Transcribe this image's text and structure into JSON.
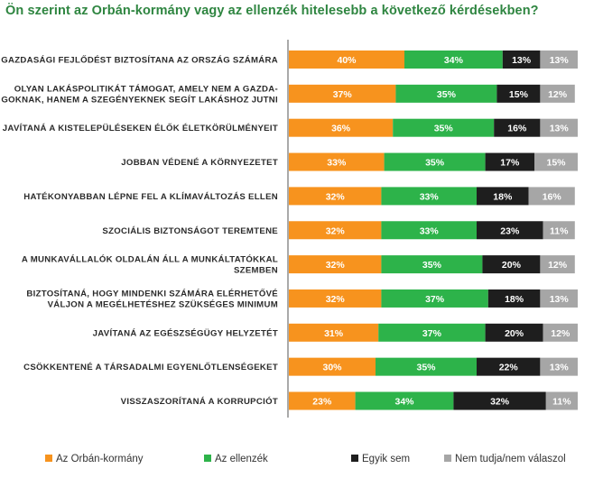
{
  "title": "Ön szerint az Orbán-kormány vagy az ellenzék hitelesebb a következő kérdésekben?",
  "chart_data": {
    "type": "bar",
    "orientation": "horizontal",
    "stacked": true,
    "value_format": "percent",
    "categories": [
      [
        "GAZDASÁGI FEJLŐDÉST BIZTOSÍTANA AZ ORSZÁG SZÁMÁRA"
      ],
      [
        "OLYAN LAKÁSPOLITIKÁT TÁMOGAT, AMELY NEM A GAZDA-",
        "GOKNAK, HANEM A SZEGÉNYEKNEK SEGÍT LAKÁSHOZ JUTNI"
      ],
      [
        "JAVÍTANÁ A KISTELEPÜLÉSEKEN ÉLŐK ÉLETKÖRÜLMÉNYEIT"
      ],
      [
        "JOBBAN VÉDENÉ A KÖRNYEZETET"
      ],
      [
        "HATÉKONYABBAN LÉPNE FEL A KLÍMAVÁLTOZÁS ELLEN"
      ],
      [
        "SZOCIÁLIS BIZTONSÁGOT TEREMTENE"
      ],
      [
        "A MUNKAVÁLLALÓK OLDALÁN ÁLL A MUNKÁLTATÓKKAL",
        "SZEMBEN"
      ],
      [
        "BIZTOSÍTANÁ, HOGY MINDENKI SZÁMÁRA ELÉRHETŐVÉ",
        "VÁLJON A MEGÉLHETÉSHEZ SZÜKSÉGES MINIMUM"
      ],
      [
        "JAVÍTANÁ AZ EGÉSZSÉGÜGY HELYZETÉT"
      ],
      [
        "CSÖKKENTENÉ A TÁRSADALMI EGYENLŐTLENSÉGEKET"
      ],
      [
        "VISSZASZORÍTANÁ A KORRUPCIÓT"
      ]
    ],
    "series": [
      {
        "name": "Az Orbán-kormány",
        "color": "#f7931e",
        "values": [
          40,
          37,
          36,
          33,
          32,
          32,
          32,
          32,
          31,
          30,
          23
        ]
      },
      {
        "name": "Az ellenzék",
        "color": "#2db34a",
        "values": [
          34,
          35,
          35,
          35,
          33,
          33,
          35,
          37,
          37,
          35,
          34
        ]
      },
      {
        "name": "Egyik sem",
        "color": "#1e1e1e",
        "values": [
          13,
          15,
          16,
          17,
          18,
          23,
          20,
          18,
          20,
          22,
          32
        ]
      },
      {
        "name": "Nem tudja/nem válaszol",
        "color": "#a6a6a6",
        "values": [
          13,
          12,
          13,
          15,
          16,
          11,
          12,
          13,
          12,
          13,
          11
        ]
      }
    ],
    "xlim": [
      0,
      100
    ],
    "legend_position": "bottom",
    "grid": false
  }
}
